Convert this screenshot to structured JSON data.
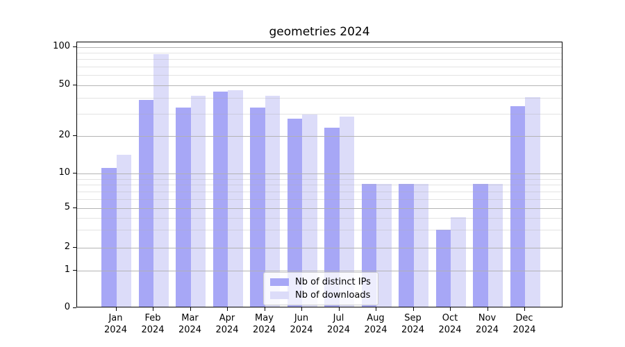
{
  "chart_data": {
    "type": "bar",
    "title": "geometries 2024",
    "categories": [
      "Jan 2024",
      "Feb 2024",
      "Mar 2024",
      "Apr 2024",
      "May 2024",
      "Jun 2024",
      "Jul 2024",
      "Aug 2024",
      "Sep 2024",
      "Oct 2024",
      "Nov 2024",
      "Dec 2024"
    ],
    "x_tick_months": [
      "Jan",
      "Feb",
      "Mar",
      "Apr",
      "May",
      "Jun",
      "Jul",
      "Aug",
      "Sep",
      "Oct",
      "Nov",
      "Dec"
    ],
    "x_tick_year": "2024",
    "series": [
      {
        "name": "Nb of distinct IPs",
        "key": "distinct-ips",
        "color": "#a7a7f6",
        "values": [
          11,
          38,
          33,
          44,
          33,
          27,
          23,
          8,
          8,
          3,
          8,
          34
        ]
      },
      {
        "name": "Nb of downloads",
        "key": "downloads",
        "color": "#dcdcf9",
        "values": [
          14,
          87,
          41,
          45,
          41,
          29,
          28,
          8,
          8,
          4,
          8,
          40
        ]
      }
    ],
    "y_scale": "symlog",
    "y_ticks": [
      0,
      1,
      2,
      5,
      10,
      20,
      50,
      100
    ],
    "y_minor_ticks": [
      3,
      4,
      6,
      7,
      8,
      9,
      30,
      40,
      60,
      70,
      80,
      90
    ],
    "ylim": [
      0,
      110
    ],
    "grid": "both",
    "legend_position": "lower center"
  },
  "colors": {
    "grid_major": "#b0b0b0",
    "grid_minor": "#e4e4e4",
    "axis": "#000000",
    "background": "#ffffff"
  }
}
